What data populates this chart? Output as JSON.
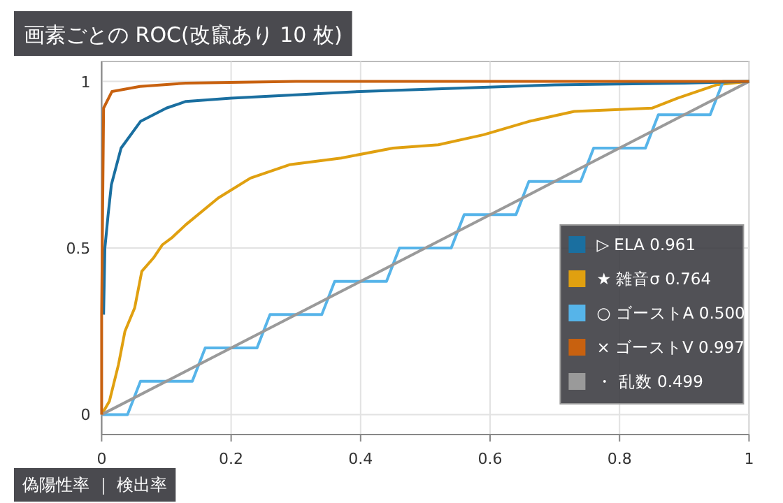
{
  "chart_data": {
    "type": "line",
    "title": "画素ごとの ROC(改竄あり 10 枚)",
    "xlabel": "偽陽性率 ｜ 検出率",
    "xlim": [
      0,
      1
    ],
    "ylim": [
      -0.06,
      1.06
    ],
    "xticks": [
      0,
      0.2,
      0.4,
      0.6,
      0.8,
      1
    ],
    "yticks": [
      0,
      0.5,
      1
    ],
    "grid": true,
    "legend": "bottom right",
    "marker": "none",
    "line_style": "solid",
    "series": [
      {
        "name": "▷ ELA 0.961",
        "color": "#1a6fa0",
        "x": [
          0.003,
          0.005,
          0.01,
          0.015,
          0.03,
          0.06,
          0.1,
          0.13,
          0.2,
          0.3,
          0.4,
          0.55,
          0.7,
          0.9,
          1
        ],
        "values": [
          0.3,
          0.5,
          0.6,
          0.69,
          0.8,
          0.88,
          0.92,
          0.94,
          0.95,
          0.96,
          0.97,
          0.98,
          0.99,
          0.995,
          1
        ]
      },
      {
        "name": "★ 雑音σ 0.764",
        "color": "#e0a010",
        "x": [
          0,
          0.012,
          0.026,
          0.036,
          0.051,
          0.062,
          0.08,
          0.094,
          0.108,
          0.13,
          0.18,
          0.23,
          0.29,
          0.37,
          0.45,
          0.52,
          0.59,
          0.66,
          0.73,
          0.85,
          0.89,
          0.95,
          1
        ],
        "values": [
          0,
          0.04,
          0.15,
          0.25,
          0.32,
          0.43,
          0.47,
          0.51,
          0.53,
          0.57,
          0.65,
          0.71,
          0.75,
          0.77,
          0.8,
          0.81,
          0.84,
          0.88,
          0.91,
          0.92,
          0.95,
          0.99,
          1
        ]
      },
      {
        "name": "○ ゴーストA 0.500",
        "color": "#56b4e9",
        "x": [
          0,
          0.04,
          0.06,
          0.14,
          0.16,
          0.24,
          0.26,
          0.34,
          0.36,
          0.44,
          0.46,
          0.54,
          0.56,
          0.64,
          0.66,
          0.74,
          0.76,
          0.84,
          0.86,
          0.94,
          0.96,
          1
        ],
        "values": [
          0,
          0,
          0.1,
          0.1,
          0.2,
          0.2,
          0.3,
          0.3,
          0.4,
          0.4,
          0.5,
          0.5,
          0.6,
          0.6,
          0.7,
          0.7,
          0.8,
          0.8,
          0.9,
          0.9,
          1,
          1
        ]
      },
      {
        "name": "× ゴーストV 0.997",
        "color": "#c8610f",
        "x": [
          0,
          0,
          0.003,
          0.016,
          0.059,
          0.13,
          0.3,
          1
        ],
        "values": [
          0,
          0.3,
          0.92,
          0.97,
          0.985,
          0.995,
          1,
          1
        ]
      },
      {
        "name": "・ 乱数 0.499",
        "color": "#9a9a9a",
        "x": [
          0,
          0.25,
          0.5,
          0.75,
          1
        ],
        "values": [
          0,
          0.25,
          0.5,
          0.75,
          1
        ]
      }
    ]
  }
}
